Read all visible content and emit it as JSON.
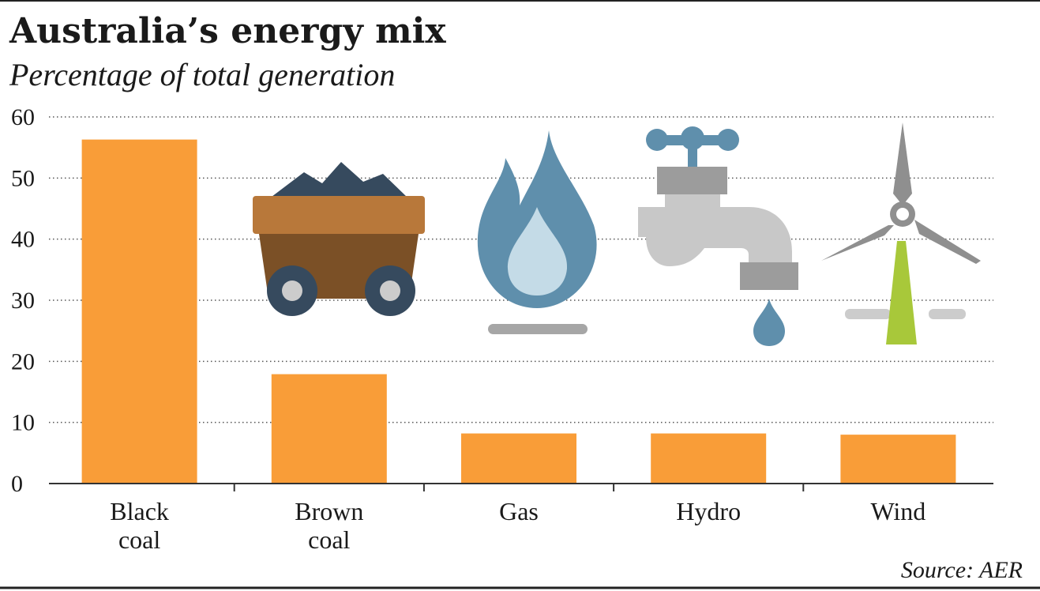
{
  "title": "Australia’s energy mix",
  "subtitle": "Percentage of total generation",
  "source": "Source: AER",
  "colors": {
    "bar": "#f99d38",
    "axis": "#333333",
    "grid": "#555555",
    "coal_dark": "#364a5e",
    "cart_body": "#7b5026",
    "cart_rim": "#b8783a",
    "wheel_hub": "#cccccc",
    "flame": "#5f8fac",
    "flame_inner": "#c4dbe7",
    "burner": "#a6a6a6",
    "tap_light": "#c8c8c8",
    "tap_dark": "#9c9c9c",
    "tap_handle": "#5f8fac",
    "drop": "#5f8fac",
    "turbine": "#8f8f8f",
    "tower": "#a8c83a",
    "ground": "#cccccc"
  },
  "icons": [
    "coal-cart-icon",
    "gas-flame-icon",
    "water-tap-icon",
    "wind-turbine-icon"
  ],
  "chart_data": {
    "type": "bar",
    "categories": [
      [
        "Black",
        "coal"
      ],
      [
        "Brown",
        "coal"
      ],
      [
        "Gas"
      ],
      [
        "Hydro"
      ],
      [
        "Wind"
      ]
    ],
    "values": [
      56.3,
      17.9,
      8.2,
      8.2,
      8.0
    ],
    "ylim": [
      0,
      60
    ],
    "yticks": [
      0,
      10,
      20,
      30,
      40,
      50,
      60
    ],
    "grid": true,
    "grid_style": "dotted"
  }
}
